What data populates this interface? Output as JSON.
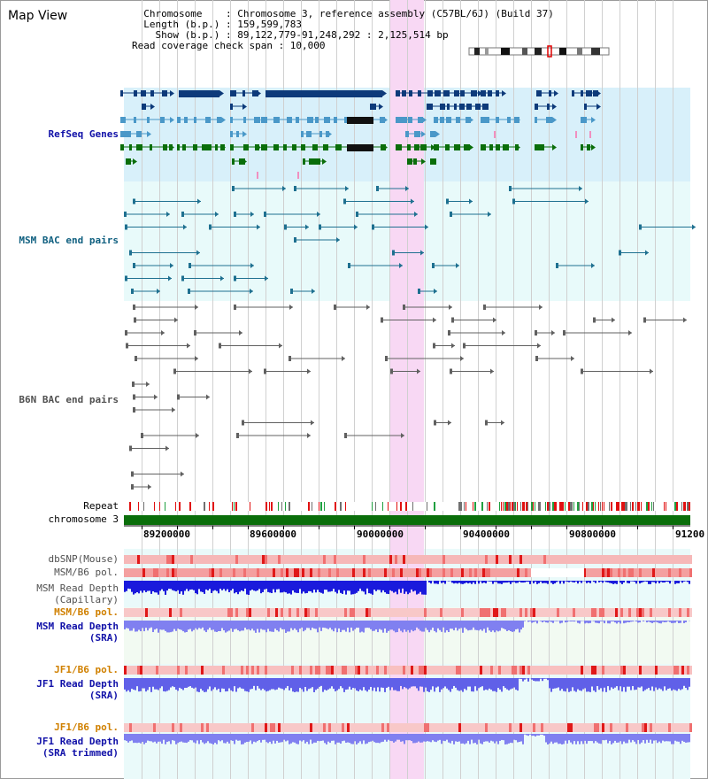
{
  "view": {
    "title": "Map View",
    "info_lines": [
      "  Chromosome    : Chromosome 3, reference assembly (C57BL/6J) (Build 37)",
      "  Length (b.p.) : 159,599,783",
      "    Show (b.p.) : 89,122,779-91,248,292 : 2,125,514 bp",
      "Read coverage check span : 10,000"
    ]
  },
  "tracks": {
    "refseq": "RefSeq Genes",
    "msm_bac": "MSM BAC end pairs",
    "b6n_bac": "B6N BAC end pairs",
    "repeat": "Repeat",
    "chromosome": "chromosome 3",
    "dbsnp": "dbSNP(Mouse)",
    "msm_b6_pol_1": "MSM/B6 pol.",
    "msm_depth_cap_1": "MSM Read Depth",
    "msm_depth_cap_2": "(Capillary)",
    "msm_b6_pol_2": "MSM/B6 pol.",
    "msm_depth_sra_1": "MSM Read Depth",
    "msm_depth_sra_2": "(SRA)",
    "jf1_b6_pol_1": "JF1/B6 pol.",
    "jf1_depth_sra_1": "JF1 Read Depth",
    "jf1_depth_sra_2": "(SRA)",
    "jf1_b6_pol_2": "JF1/B6 pol.",
    "jf1_depth_trim_1": "JF1 Read Depth",
    "jf1_depth_trim_2": "(SRA trimmed)"
  },
  "axis": {
    "ticks": [
      "89200000",
      "89600000",
      "90000000",
      "90400000",
      "90800000",
      "91200"
    ]
  },
  "colors": {
    "refseq_bg": "#d8f0fa",
    "bac_bg": "#e8fafa",
    "highlight": "#f8d8f4",
    "gene_dark": "#0d3a7a",
    "gene_mid": "#4a98c8",
    "gene_green": "#0a6e0a",
    "label_blue": "#1010a8",
    "label_teal": "#106080",
    "label_gray": "#505050",
    "label_orange": "#d08000",
    "depth_blue": "#1a1adc",
    "depth_light": "#8080f0"
  }
}
